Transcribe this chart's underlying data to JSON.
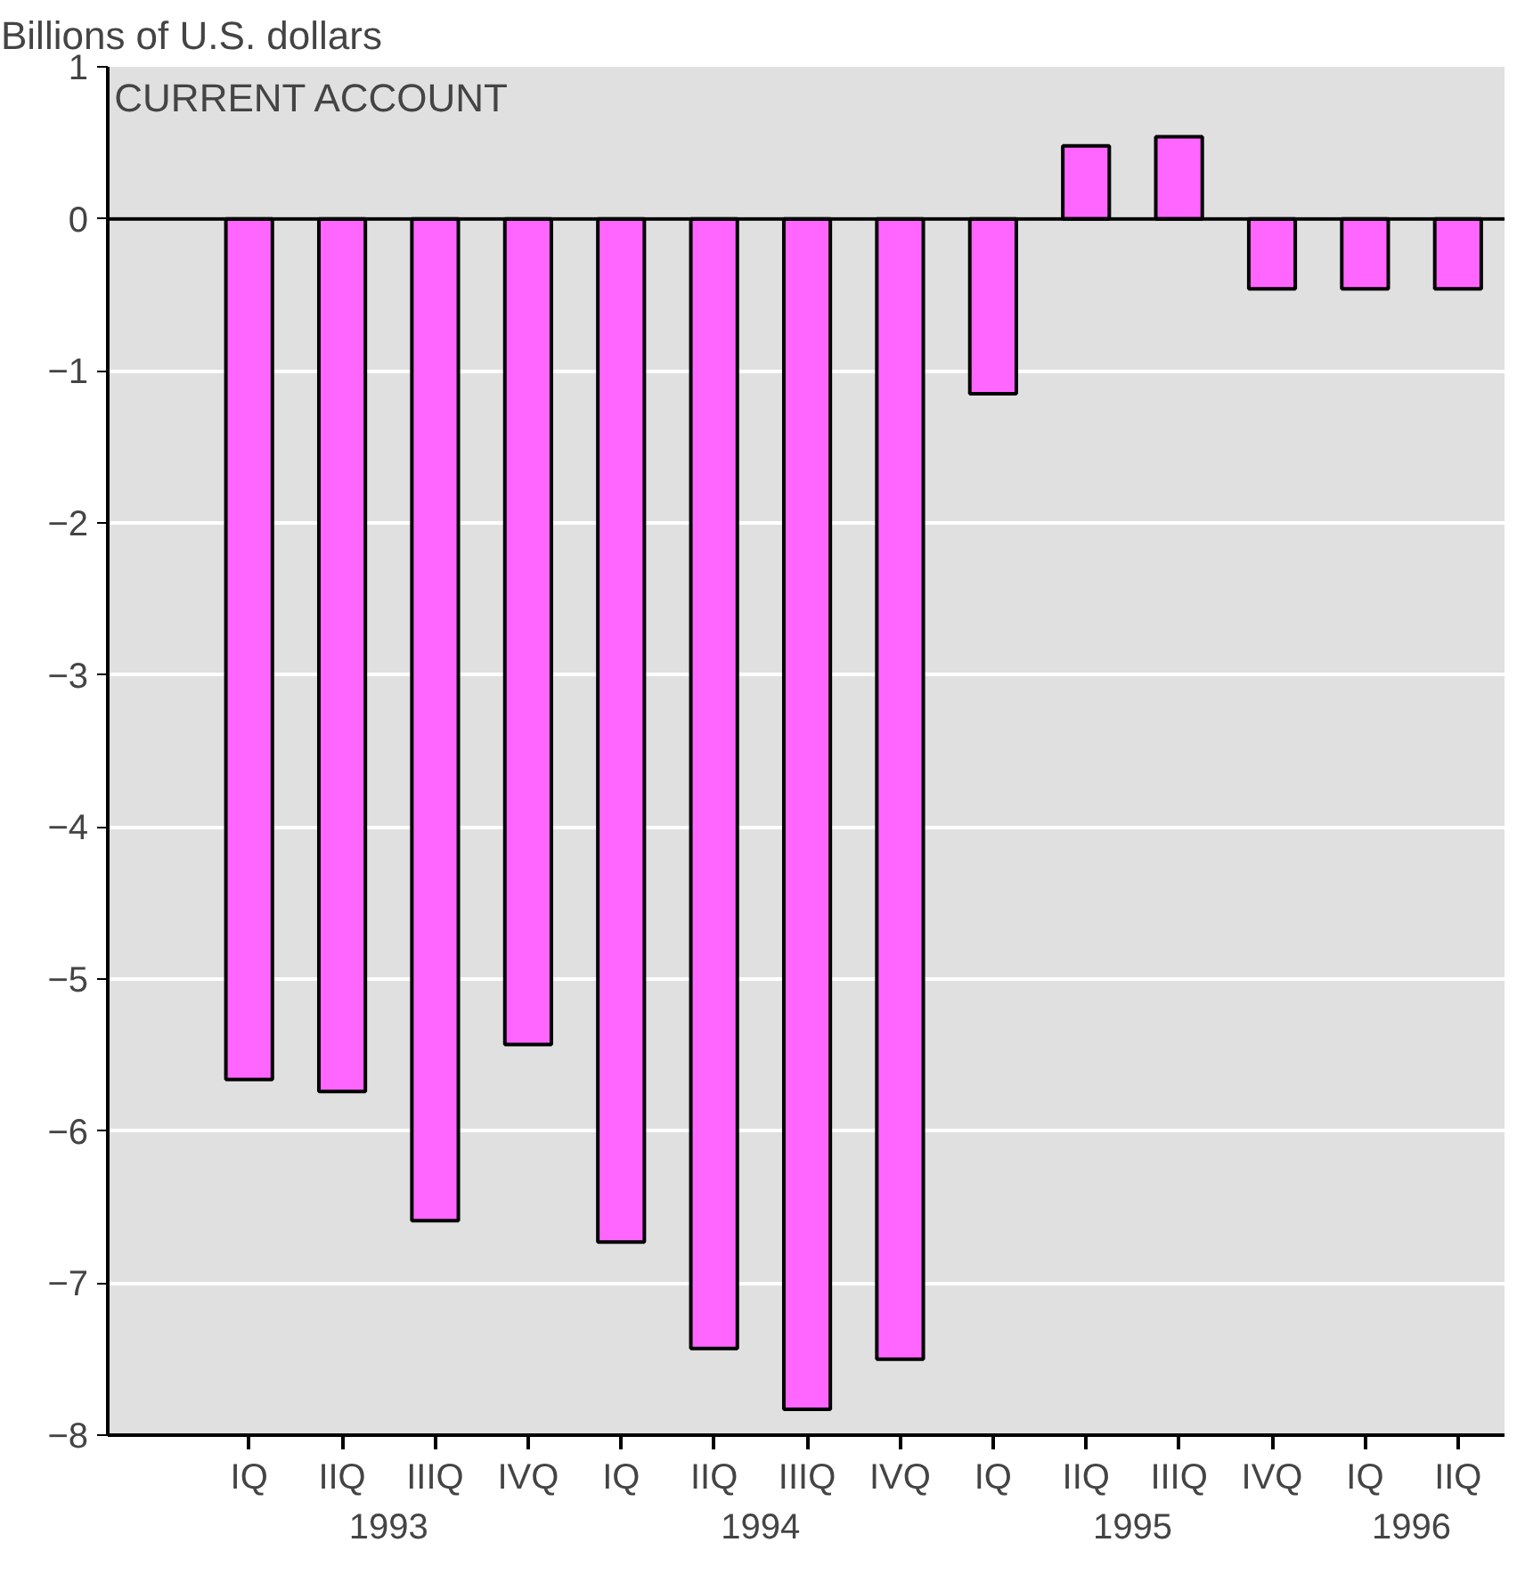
{
  "chart_data": {
    "type": "bar",
    "title": "CURRENT ACCOUNT",
    "ylabel": "Billions of U.S. dollars",
    "categories": [
      "IQ",
      "IIQ",
      "IIIQ",
      "IVQ",
      "IQ",
      "IIQ",
      "IIIQ",
      "IVQ",
      "IQ",
      "IIQ",
      "IIIQ",
      "IVQ",
      "IQ",
      "IIQ"
    ],
    "values": [
      -5.66,
      -5.74,
      -6.59,
      -5.43,
      -6.73,
      -7.43,
      -7.83,
      -7.5,
      -1.15,
      0.48,
      0.54,
      -0.46,
      -0.46,
      -0.46
    ],
    "color": "#ff66ff",
    "annotations": [
      "1993",
      "1994",
      "1995",
      "1996"
    ],
    "ylim": [
      -8,
      1
    ],
    "yticks": [
      -8,
      -7,
      -6,
      -5,
      -4,
      -3,
      -2,
      -1,
      0,
      1
    ],
    "ref_lines": [
      {
        "axis": "y",
        "value": 0,
        "color": "#000000"
      }
    ],
    "grid": "y"
  }
}
